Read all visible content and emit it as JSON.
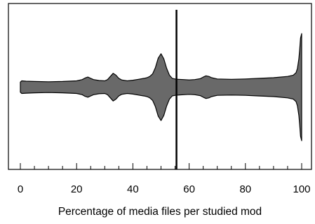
{
  "chart_data": {
    "type": "violin",
    "title": "",
    "xlabel": "Percentage of media files per studied mod",
    "ylabel": "",
    "xlim": [
      -1.5,
      101
    ],
    "xticks": [
      0,
      20,
      40,
      60,
      80,
      100
    ],
    "xtick_labels": [
      "0",
      "20",
      "40",
      "60",
      "80",
      "100"
    ],
    "minor_tick_step": 5,
    "grid": false,
    "legend": "none",
    "reference_line_x": 55.5,
    "fill_color": "#696969",
    "line_color": "#000000",
    "density_profile": {
      "x": [
        0,
        0.5,
        2,
        5,
        10,
        15,
        20,
        22,
        23,
        24,
        25,
        26,
        28,
        30,
        31,
        32,
        33,
        34,
        35,
        36,
        38,
        40,
        42,
        44,
        45,
        46,
        47,
        48,
        49,
        50,
        51,
        52,
        53,
        54,
        55,
        56,
        58,
        60,
        62,
        64,
        65,
        66,
        67,
        68,
        70,
        75,
        80,
        85,
        90,
        95,
        97,
        98,
        98.5,
        99,
        99.3,
        99.6,
        100
      ],
      "density": [
        0.08,
        0.1,
        0.095,
        0.09,
        0.085,
        0.09,
        0.1,
        0.12,
        0.145,
        0.16,
        0.14,
        0.12,
        0.105,
        0.1,
        0.12,
        0.17,
        0.22,
        0.19,
        0.14,
        0.115,
        0.1,
        0.11,
        0.125,
        0.14,
        0.15,
        0.17,
        0.21,
        0.31,
        0.46,
        0.53,
        0.45,
        0.3,
        0.19,
        0.14,
        0.13,
        0.125,
        0.12,
        0.115,
        0.12,
        0.135,
        0.16,
        0.18,
        0.17,
        0.15,
        0.13,
        0.125,
        0.13,
        0.14,
        0.15,
        0.17,
        0.19,
        0.23,
        0.3,
        0.45,
        0.6,
        0.78,
        0.85
      ]
    }
  }
}
